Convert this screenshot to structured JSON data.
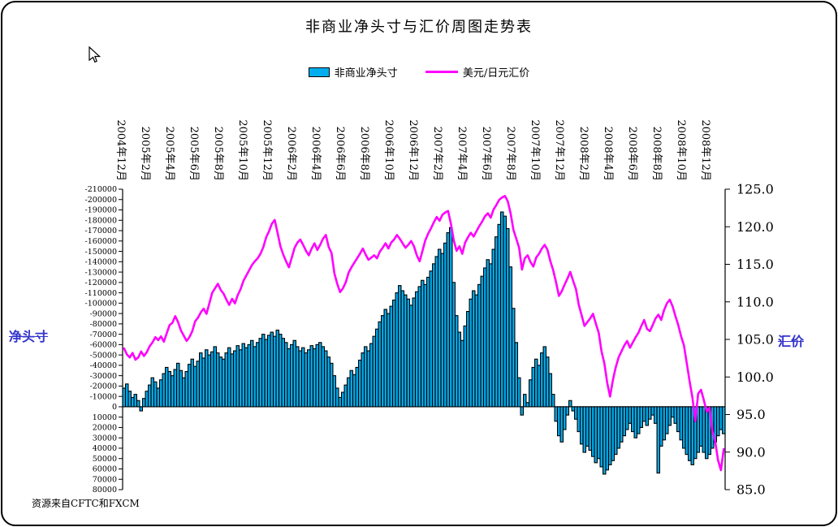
{
  "title": "非商业净头寸与汇价周图走势表",
  "source_note": "资源来自CFTC和FXCM",
  "colors": {
    "bar_fill": "#00AEEF",
    "bar_stroke": "#000000",
    "line": "#FF00FF",
    "axis_title_left": "#3333CC",
    "axis_title_right": "#3333CC",
    "axis": "#000000"
  },
  "chart_data": {
    "type": "combo",
    "title": "非商业净头寸与汇价周图走势表",
    "grid": false,
    "legend_position": "top",
    "x_unit": "week (2004-12 to 2008-12)",
    "left_axis": {
      "label": "净头寸",
      "range": [
        -210000,
        80000
      ],
      "inverted": true,
      "ticks": [
        "-210000",
        "-200000",
        "-190000",
        "-180000",
        "-170000",
        "-160000",
        "-150000",
        "-140000",
        "-130000",
        "-120000",
        "-110000",
        "-100000",
        "-90000",
        "-80000",
        "-70000",
        "-60000",
        "-50000",
        "-40000",
        "-30000",
        "-20000",
        "-10000",
        "0",
        "10000",
        "20000",
        "30000",
        "40000",
        "50000",
        "60000",
        "70000",
        "80000"
      ]
    },
    "right_axis": {
      "label": "汇价",
      "range": [
        85.0,
        125.0
      ],
      "inverted": false,
      "ticks": [
        "125.0",
        "120.0",
        "115.0",
        "110.0",
        "105.0",
        "100.0",
        "95.0",
        "90.0",
        "85.0"
      ]
    },
    "x_axis": {
      "visible_tick_labels": [
        "2004年12月",
        "2005年2月",
        "2005年4月",
        "2005年6月",
        "2005年8月",
        "2005年10月",
        "2005年12月",
        "2006年2月",
        "2006年4月",
        "2006年6月",
        "2006年8月",
        "2006年10月",
        "2006年12月",
        "2007年2月",
        "2007年4月",
        "2007年6月",
        "2007年8月",
        "2007年10月",
        "2007年12月",
        "2008年2月",
        "2008年4月",
        "2008年6月",
        "2008年8月",
        "2008年10月",
        "2008年12月"
      ]
    },
    "series": [
      {
        "name": "非商业净头寸",
        "type": "bar",
        "axis": "left",
        "values": [
          -18000,
          -22000,
          -15000,
          -9000,
          -12000,
          -6000,
          4000,
          -8000,
          -15000,
          -21000,
          -28000,
          -24000,
          -18000,
          -26000,
          -32000,
          -38000,
          -34000,
          -30000,
          -36000,
          -42000,
          -35000,
          -28000,
          -34000,
          -41000,
          -46000,
          -39000,
          -44000,
          -52000,
          -47000,
          -55000,
          -50000,
          -53000,
          -58000,
          -52000,
          -48000,
          -46000,
          -52000,
          -57000,
          -51000,
          -54000,
          -59000,
          -55000,
          -61000,
          -57000,
          -60000,
          -64000,
          -58000,
          -62000,
          -66000,
          -70000,
          -65000,
          -69000,
          -72000,
          -68000,
          -74000,
          -70000,
          -66000,
          -62000,
          -56000,
          -60000,
          -64000,
          -58000,
          -54000,
          -57000,
          -52000,
          -55000,
          -59000,
          -56000,
          -60000,
          -62000,
          -58000,
          -54000,
          -48000,
          -42000,
          -30000,
          -18000,
          -9000,
          -14000,
          -21000,
          -28000,
          -35000,
          -31000,
          -38000,
          -45000,
          -52000,
          -58000,
          -54000,
          -61000,
          -68000,
          -75000,
          -82000,
          -88000,
          -94000,
          -90000,
          -97000,
          -103000,
          -110000,
          -117000,
          -112000,
          -108000,
          -104000,
          -98000,
          -105000,
          -111000,
          -116000,
          -122000,
          -118000,
          -125000,
          -131000,
          -138000,
          -145000,
          -152000,
          -148000,
          -158000,
          -168000,
          -173000,
          -120000,
          -88000,
          -72000,
          -64000,
          -78000,
          -92000,
          -104000,
          -112000,
          -108000,
          -118000,
          -126000,
          -134000,
          -142000,
          -138000,
          -152000,
          -164000,
          -176000,
          -188000,
          -184000,
          -172000,
          -135000,
          -95000,
          -62000,
          -28000,
          8000,
          -12000,
          -4000,
          -26000,
          -38000,
          -46000,
          -40000,
          -52000,
          -58000,
          -48000,
          -32000,
          -12000,
          14000,
          28000,
          34000,
          22000,
          8000,
          -6000,
          4000,
          12000,
          24000,
          36000,
          44000,
          38000,
          42000,
          48000,
          54000,
          50000,
          58000,
          65000,
          61000,
          56000,
          52000,
          46000,
          40000,
          34000,
          28000,
          22000,
          16000,
          24000,
          30000,
          26000,
          20000,
          14000,
          18000,
          12000,
          8000,
          16000,
          64000,
          38000,
          32000,
          26000,
          18000,
          10000,
          16000,
          24000,
          32000,
          40000,
          46000,
          52000,
          56000,
          50000,
          44000,
          38000,
          44000,
          50000,
          46000,
          40000,
          34000,
          28000,
          22000,
          26000
        ]
      },
      {
        "name": "美元/日元汇价",
        "type": "line",
        "axis": "right",
        "values": [
          103.8,
          103.0,
          102.6,
          103.2,
          102.3,
          102.6,
          103.4,
          102.8,
          103.3,
          104.1,
          104.6,
          105.3,
          104.9,
          105.4,
          104.7,
          105.8,
          106.9,
          107.2,
          108.1,
          107.3,
          106.2,
          105.5,
          104.8,
          105.3,
          106.1,
          107.4,
          107.9,
          108.6,
          109.1,
          108.4,
          109.8,
          111.2,
          111.8,
          112.4,
          111.6,
          111.1,
          110.3,
          109.6,
          110.4,
          109.8,
          110.9,
          111.7,
          112.8,
          113.5,
          114.2,
          114.9,
          115.4,
          115.8,
          116.4,
          117.3,
          118.6,
          119.4,
          120.4,
          120.9,
          119.2,
          117.4,
          116.3,
          115.4,
          114.6,
          115.9,
          117.2,
          117.9,
          118.3,
          117.6,
          116.8,
          116.2,
          117.1,
          117.8,
          116.9,
          117.6,
          118.4,
          118.9,
          117.3,
          116.5,
          113.8,
          112.4,
          111.3,
          111.8,
          112.6,
          113.9,
          114.6,
          115.2,
          115.8,
          116.4,
          117.1,
          116.3,
          115.6,
          115.9,
          116.2,
          115.8,
          116.7,
          117.2,
          117.8,
          117.1,
          117.9,
          118.3,
          118.9,
          118.4,
          117.8,
          117.2,
          117.6,
          118.1,
          117.4,
          116.2,
          115.4,
          116.8,
          118.2,
          119.1,
          119.8,
          120.6,
          121.3,
          120.8,
          121.6,
          121.9,
          122.1,
          120.4,
          118.2,
          116.8,
          117.4,
          116.4,
          117.9,
          118.6,
          119.2,
          118.7,
          119.4,
          120.1,
          120.7,
          121.4,
          121.8,
          121.2,
          122.3,
          122.9,
          123.6,
          123.9,
          124.1,
          123.4,
          121.8,
          119.6,
          118.4,
          117.2,
          114.3,
          115.8,
          116.2,
          115.3,
          114.7,
          115.9,
          116.4,
          117.1,
          117.6,
          116.9,
          115.4,
          114.2,
          112.6,
          110.8,
          111.4,
          112.3,
          113.1,
          114.0,
          112.8,
          111.7,
          109.6,
          108.2,
          106.8,
          107.3,
          107.8,
          108.4,
          107.1,
          105.9,
          103.4,
          101.8,
          99.2,
          97.4,
          99.6,
          101.3,
          102.6,
          103.4,
          104.2,
          104.8,
          103.9,
          104.6,
          105.3,
          105.9,
          106.8,
          107.6,
          106.4,
          106.1,
          106.9,
          107.8,
          108.3,
          107.6,
          108.9,
          109.8,
          110.3,
          109.4,
          108.1,
          106.9,
          105.4,
          104.2,
          101.8,
          99.4,
          97.2,
          94.1,
          97.8,
          98.3,
          96.9,
          95.4,
          95.9,
          92.8,
          91.4,
          88.9,
          87.6,
          90.4
        ]
      }
    ]
  }
}
